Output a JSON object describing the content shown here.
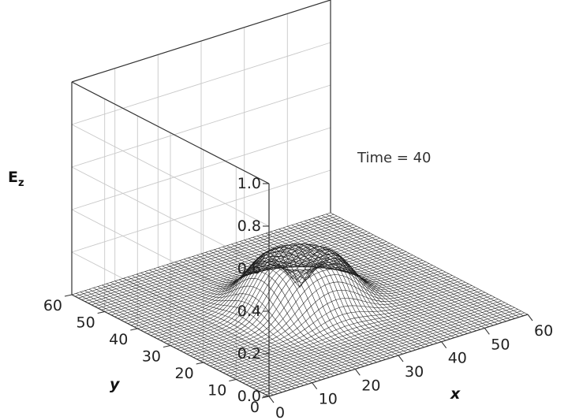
{
  "chart_data": {
    "type": "surface",
    "title": "",
    "annotation": "Time = 40",
    "xlabel": "x",
    "ylabel": "y",
    "zlabel_main": "E",
    "zlabel_sub": "z",
    "x_ticks": [
      "0",
      "10",
      "20",
      "30",
      "40",
      "50",
      "60"
    ],
    "y_ticks": [
      "0",
      "10",
      "20",
      "30",
      "40",
      "50",
      "60"
    ],
    "z_ticks": [
      "0.0",
      "0.2",
      "0.4",
      "0.6",
      "0.8",
      "1.0"
    ],
    "xlim": [
      0,
      60
    ],
    "ylim": [
      0,
      60
    ],
    "zlim": [
      0,
      1.0
    ],
    "grid": true,
    "surface": {
      "description_free": true,
      "center_x": 30,
      "center_y": 30,
      "ring_radius": 6,
      "ring_width": 6,
      "peak": 0.22,
      "center_value": 0.2,
      "mesh_count": 61
    }
  }
}
